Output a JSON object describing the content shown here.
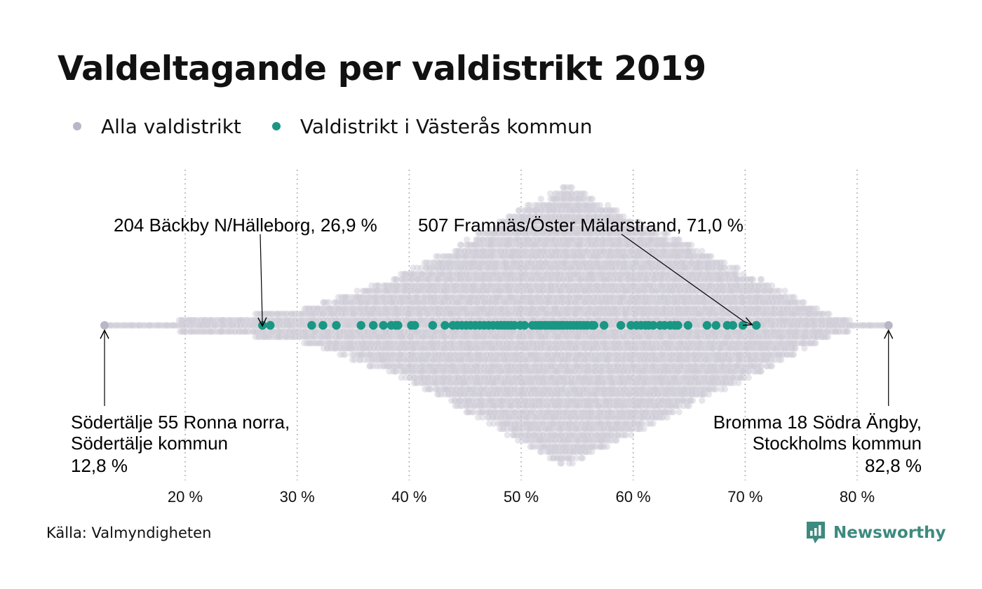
{
  "title": "Valdeltagande per valdistrikt 2019",
  "legend": [
    {
      "label": "Alla valdistrikt",
      "color": "#b9b6c6"
    },
    {
      "label": "Valdistrikt i Västerås kommun",
      "color": "#1a9784"
    }
  ],
  "source": "Källa: Valmyndigheten",
  "brand": {
    "name": "Newsworthy",
    "icon": "newsworthy-logo-icon"
  },
  "chart_data": {
    "type": "scatter",
    "xlim": [
      0.12,
      0.84
    ],
    "x_ticks": [
      0.2,
      0.3,
      0.4,
      0.5,
      0.6,
      0.7,
      0.8
    ],
    "tick_labels": [
      "20 %",
      "30 %",
      "40 %",
      "50 %",
      "60 %",
      "70 %",
      "80 %"
    ],
    "grid": "vertical dotted",
    "legend_position": "top-left",
    "colors": {
      "all": "#c9c7d3",
      "highlight": "#1a9784",
      "extreme": "#b9b6c6"
    },
    "all_districts_peak": 0.54,
    "extremes": [
      {
        "name": "Södertälje 55 Ronna norra,",
        "municipality": "Södertälje kommun",
        "value_label": "12,8 %",
        "value": 0.128
      },
      {
        "name": "Bromma 18 Södra Ängby,",
        "municipality": "Stockholms kommun",
        "value_label": "82,8 %",
        "value": 0.828
      }
    ],
    "highlight_annotations": [
      {
        "label": "204 Bäckby N/Hälleborg, 26,9 %",
        "value": 0.269
      },
      {
        "label": "507 Framnäs/Öster Mälarstrand, 71,0 %",
        "value": 0.71
      }
    ],
    "vasteras_values": [
      0.269,
      0.276,
      0.313,
      0.323,
      0.335,
      0.357,
      0.368,
      0.377,
      0.384,
      0.388,
      0.39,
      0.402,
      0.405,
      0.421,
      0.432,
      0.439,
      0.443,
      0.447,
      0.451,
      0.455,
      0.459,
      0.463,
      0.467,
      0.471,
      0.475,
      0.479,
      0.482,
      0.485,
      0.488,
      0.491,
      0.494,
      0.499,
      0.503,
      0.51,
      0.513,
      0.516,
      0.518,
      0.521,
      0.523,
      0.526,
      0.528,
      0.53,
      0.532,
      0.534,
      0.536,
      0.538,
      0.541,
      0.544,
      0.547,
      0.55,
      0.553,
      0.556,
      0.559,
      0.563,
      0.565,
      0.574,
      0.589,
      0.598,
      0.603,
      0.607,
      0.611,
      0.614,
      0.618,
      0.624,
      0.628,
      0.633,
      0.637,
      0.64,
      0.649,
      0.666,
      0.674,
      0.684,
      0.689,
      0.698,
      0.71
    ]
  }
}
